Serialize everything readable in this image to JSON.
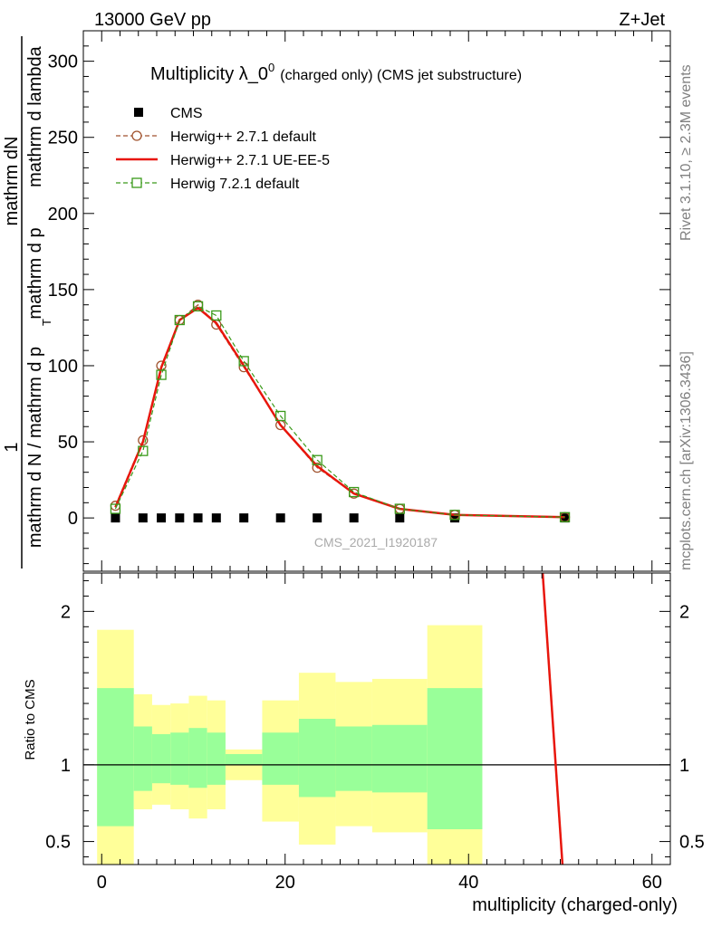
{
  "header": {
    "energy_label": "13000 GeV pp",
    "process_label": "Z+Jet"
  },
  "side_labels": {
    "rivet": "Rivet 3.1.10, ≥ 2.3M events",
    "mcplots": "mcplots.cern.ch [arXiv:1306.3436]"
  },
  "chart_data": [
    {
      "type": "line",
      "title": "Multiplicity λ_0",
      "title_superscript": "0",
      "title_suffix": "(charged only) (CMS jet substructure)",
      "ylabel_numerator": "mathrm dN",
      "ylabel_lines": [
        "mathrm d p",
        "mathrm d N / mathrm d p",
        "mathrm d lambda"
      ],
      "ylabel_subscript": "T",
      "ylabel_prefix": "1",
      "xlim": [
        -2,
        62
      ],
      "ylim": [
        -35,
        320
      ],
      "yticks": [
        0,
        50,
        100,
        150,
        200,
        250,
        300
      ],
      "watermark": "CMS_2021_I1920187",
      "legend_position": "top-left",
      "series": [
        {
          "name": "CMS",
          "style": "marker-square-filled",
          "color": "#000000",
          "x": [
            1.5,
            4.5,
            6.5,
            8.5,
            10.5,
            12.5,
            15.5,
            19.5,
            23.5,
            27.5,
            32.5,
            38.5,
            50.5
          ],
          "y": [
            0,
            0,
            0,
            0,
            0,
            0,
            0,
            0,
            0,
            0,
            0,
            0,
            0
          ]
        },
        {
          "name": "Herwig++ 2.7.1 default",
          "style": "dashed-open-circle",
          "color": "#a0522d",
          "x": [
            1.5,
            4.5,
            6.5,
            8.5,
            10.5,
            12.5,
            15.5,
            19.5,
            23.5,
            27.5,
            32.5,
            38.5,
            50.5
          ],
          "y": [
            8,
            51,
            100,
            130,
            140,
            127,
            99,
            61,
            33,
            16,
            6,
            2,
            0.5
          ]
        },
        {
          "name": "Herwig++ 2.7.1 UE-EE-5",
          "style": "solid",
          "color": "#e8160c",
          "x": [
            1.5,
            4.5,
            6.5,
            8.5,
            10.5,
            12.5,
            15.5,
            19.5,
            23.5,
            27.5,
            32.5,
            38.5,
            50.5
          ],
          "y": [
            7,
            50,
            99,
            130,
            138,
            128,
            100,
            61,
            34,
            16,
            6,
            2,
            0.5
          ]
        },
        {
          "name": "Herwig 7.2.1 default",
          "style": "dashed-open-square",
          "color": "#3a9a1a",
          "x": [
            1.5,
            4.5,
            6.5,
            8.5,
            10.5,
            12.5,
            15.5,
            19.5,
            23.5,
            27.5,
            32.5,
            38.5,
            50.5
          ],
          "y": [
            6,
            44,
            94,
            130,
            139,
            133,
            103,
            67,
            38,
            17,
            6,
            2,
            0.5
          ]
        }
      ]
    },
    {
      "type": "line",
      "ylabel": "Ratio to CMS",
      "xlabel": "multiplicity (charged-only)",
      "xlim": [
        -2,
        62
      ],
      "ylim": [
        0.35,
        2.25
      ],
      "yticks": [
        0.5,
        1,
        2
      ],
      "ytick_labels": [
        "0.5",
        "1",
        "2"
      ],
      "xticks": [
        0,
        20,
        40,
        60
      ],
      "xtick_labels": [
        "0",
        "20",
        "40",
        "60"
      ],
      "reference_line": 1,
      "bands": {
        "bin_edges": [
          -0.5,
          3.5,
          5.5,
          7.5,
          9.5,
          11.5,
          13.5,
          17.5,
          21.5,
          25.5,
          29.5,
          35.5,
          41.5
        ],
        "outer_color": "#ffff99",
        "inner_color": "#99ff99",
        "outer_lo": [
          0.35,
          0.71,
          0.74,
          0.71,
          0.65,
          0.71,
          0.9,
          0.63,
          0.48,
          0.6,
          0.56,
          0.35
        ],
        "outer_hi": [
          1.88,
          1.46,
          1.39,
          1.4,
          1.45,
          1.42,
          1.1,
          1.42,
          1.6,
          1.54,
          1.56,
          1.91
        ],
        "inner_lo": [
          0.6,
          0.83,
          0.88,
          0.87,
          0.85,
          0.87,
          1.0,
          0.87,
          0.79,
          0.83,
          0.82,
          0.58
        ],
        "inner_hi": [
          1.5,
          1.25,
          1.2,
          1.21,
          1.24,
          1.21,
          1.07,
          1.21,
          1.3,
          1.25,
          1.26,
          1.5
        ]
      },
      "series": [
        {
          "name": "Herwig++ 2.7.1 default",
          "color": "#a0522d",
          "dashed": true,
          "x": [
            47.8,
            50.3
          ],
          "y": [
            2.5,
            0.3
          ]
        },
        {
          "name": "Herwig++ 2.7.1 UE-EE-5",
          "color": "#e8160c",
          "dashed": false,
          "x": [
            47.8,
            50.3
          ],
          "y": [
            2.5,
            0.3
          ]
        }
      ]
    }
  ]
}
